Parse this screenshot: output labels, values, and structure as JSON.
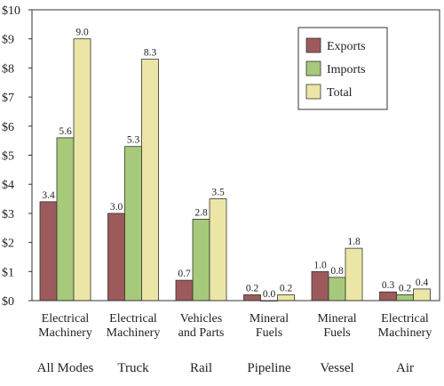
{
  "chart_data": {
    "type": "bar",
    "title": "",
    "xlabel": "",
    "ylabel": "",
    "ylim": [
      0,
      10
    ],
    "yticks": [
      "$0",
      "$1",
      "$2",
      "$3",
      "$4",
      "$5",
      "$6",
      "$7",
      "$8",
      "$9",
      "$10"
    ],
    "categories": [
      {
        "label_lines": [
          "Electrical",
          "Machinery"
        ],
        "mode": "All Modes"
      },
      {
        "label_lines": [
          "Electrical",
          "Machinery"
        ],
        "mode": "Truck"
      },
      {
        "label_lines": [
          "Vehicles",
          "and Parts"
        ],
        "mode": "Rail"
      },
      {
        "label_lines": [
          "Mineral",
          "Fuels"
        ],
        "mode": "Pipeline"
      },
      {
        "label_lines": [
          "Mineral",
          "Fuels"
        ],
        "mode": "Vessel"
      },
      {
        "label_lines": [
          "Electrical",
          "Machinery"
        ],
        "mode": "Air"
      }
    ],
    "series": [
      {
        "name": "Exports",
        "color": "#9c5a5a",
        "values": [
          3.4,
          3.0,
          0.7,
          0.2,
          1.0,
          0.3
        ],
        "labels": [
          "3.4",
          "3.0",
          "0.7",
          "0.2",
          "1.0",
          "0.3"
        ]
      },
      {
        "name": "Imports",
        "color": "#a6c97a",
        "values": [
          5.6,
          5.3,
          2.8,
          0.0,
          0.8,
          0.2
        ],
        "labels": [
          "5.6",
          "5.3",
          "2.8",
          "0.0",
          "0.8",
          "0.2"
        ]
      },
      {
        "name": "Total",
        "color": "#ece6a6",
        "values": [
          9.0,
          8.3,
          3.5,
          0.2,
          1.8,
          0.4
        ],
        "labels": [
          "9.0",
          "8.3",
          "3.5",
          "0.2",
          "1.8",
          "0.4"
        ]
      }
    ],
    "legend_position": "top-right",
    "grid": false
  }
}
